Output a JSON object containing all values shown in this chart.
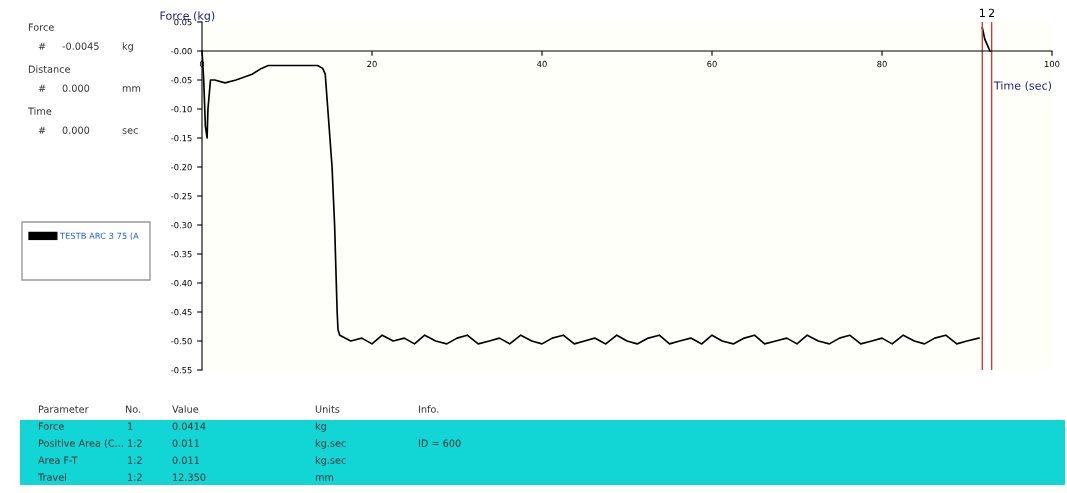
{
  "chart_data": {
    "type": "line",
    "xlabel": "Time (sec)",
    "ylabel": "Force (kg)",
    "xlim": [
      0,
      100
    ],
    "ylim": [
      -0.55,
      0.05
    ],
    "xticks": [
      0,
      20,
      40,
      60,
      80,
      100
    ],
    "yticks": [
      {
        "value": 0.05,
        "label": "0.05"
      },
      {
        "value": 0,
        "label": "-0.00"
      },
      {
        "value": -0.05,
        "label": "-0.05"
      },
      {
        "value": -0.1,
        "label": "-0.10"
      },
      {
        "value": -0.15,
        "label": "-0.15"
      },
      {
        "value": -0.2,
        "label": "-0.20"
      },
      {
        "value": -0.25,
        "label": "-0.25"
      },
      {
        "value": -0.3,
        "label": "-0.30"
      },
      {
        "value": -0.35,
        "label": "-0.35"
      },
      {
        "value": -0.4,
        "label": "-0.40"
      },
      {
        "value": -0.45,
        "label": "-0.45"
      },
      {
        "value": -0.5,
        "label": "-0.50"
      },
      {
        "value": -0.55,
        "label": "-0.55"
      }
    ],
    "grid": false,
    "legend": "left",
    "marker": "none",
    "line_style": "solid",
    "series": [
      {
        "name": "TESTB ARC 3 75 (A",
        "color": "#000000",
        "x": [
          0,
          0.2,
          0.4,
          0.6,
          0.7,
          1.0,
          1.5,
          2.7,
          4.0,
          5.9,
          7.0,
          7.8,
          9.0,
          10.5,
          12.0,
          13.6,
          14.2,
          14.5,
          14.8,
          15.3,
          15.6,
          15.9,
          16.0,
          16.2,
          17.5,
          18.8,
          20.0,
          21.2,
          22.5,
          23.8,
          25.0,
          26.2,
          27.5,
          28.8,
          30.0,
          31.2,
          32.5,
          33.8,
          35.0,
          36.2,
          37.5,
          38.8,
          40.0,
          41.2,
          42.5,
          43.8,
          45.0,
          46.2,
          47.5,
          48.8,
          50.0,
          51.2,
          52.5,
          53.8,
          55.0,
          56.2,
          57.5,
          58.8,
          60.0,
          61.2,
          62.5,
          63.8,
          65.0,
          66.2,
          67.5,
          68.8,
          70.0,
          71.2,
          72.5,
          73.8,
          75.0,
          76.2,
          77.5,
          78.8,
          80.0,
          81.2,
          82.5,
          83.8,
          85.0,
          86.2,
          87.5,
          88.8,
          90.0,
          91.4
        ],
        "values": [
          0,
          -0.05,
          -0.13,
          -0.15,
          -0.1,
          -0.05,
          -0.05,
          -0.055,
          -0.05,
          -0.04,
          -0.03,
          -0.025,
          -0.025,
          -0.025,
          -0.025,
          -0.025,
          -0.03,
          -0.04,
          -0.1,
          -0.2,
          -0.3,
          -0.45,
          -0.48,
          -0.49,
          -0.5,
          -0.495,
          -0.505,
          -0.49,
          -0.5,
          -0.495,
          -0.505,
          -0.49,
          -0.5,
          -0.505,
          -0.495,
          -0.49,
          -0.505,
          -0.5,
          -0.495,
          -0.505,
          -0.49,
          -0.5,
          -0.505,
          -0.495,
          -0.49,
          -0.505,
          -0.5,
          -0.495,
          -0.505,
          -0.49,
          -0.5,
          -0.505,
          -0.495,
          -0.49,
          -0.505,
          -0.5,
          -0.495,
          -0.505,
          -0.49,
          -0.5,
          -0.505,
          -0.495,
          -0.49,
          -0.505,
          -0.5,
          -0.495,
          -0.505,
          -0.49,
          -0.5,
          -0.505,
          -0.495,
          -0.49,
          -0.505,
          -0.5,
          -0.495,
          -0.505,
          -0.49,
          -0.5,
          -0.505,
          -0.495,
          -0.49,
          -0.505,
          -0.5,
          -0.495
        ]
      },
      {
        "color": "#000000",
        "x": [
          91.8,
          92.1,
          92.4,
          92.7
        ],
        "values": [
          0.04,
          0.02,
          0.01,
          0.0
        ]
      }
    ],
    "ref_lines": [
      {
        "axis": "x",
        "value": 91.8,
        "color": "#c04040"
      },
      {
        "axis": "x",
        "value": 92.9,
        "color": "#c04040"
      }
    ],
    "annotations": [
      {
        "text": "1",
        "x": 91.8,
        "y": 0.05
      },
      {
        "text": "2",
        "x": 92.9,
        "y": 0.05
      },
      "Force",
      "#",
      "-0.0045",
      "kg",
      "Distance",
      "#",
      "0.000",
      "mm",
      "Time",
      "#",
      "0.000",
      "sec",
      "Parameter",
      "No.",
      "Value",
      "Units",
      "Info.",
      "Force",
      "1",
      "0.0414",
      "kg",
      "Positive Area (C...",
      "1:2",
      "0.011",
      "kg.sec",
      "ID = 600",
      "Area F-T",
      "1:2",
      "0.011",
      "kg.sec",
      "Travel",
      "1:2",
      "12.350",
      "mm"
    ]
  }
}
